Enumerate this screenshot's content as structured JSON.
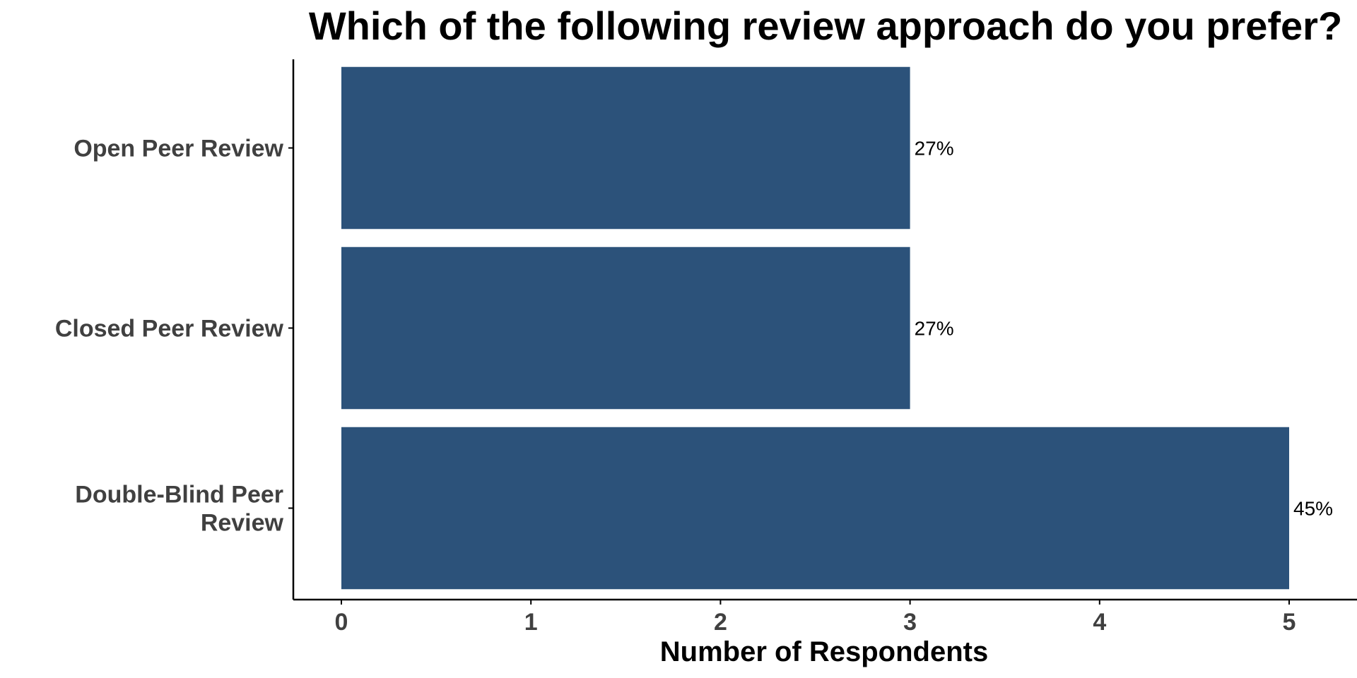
{
  "chart_data": {
    "type": "bar",
    "orientation": "horizontal",
    "title": "Which of the following review approach do you prefer?",
    "xlabel": "Number of Respondents",
    "ylabel": "",
    "categories": [
      [
        "Open Peer Review"
      ],
      [
        "Closed Peer Review"
      ],
      [
        "Double-Blind Peer",
        "Review"
      ]
    ],
    "values": [
      3,
      3,
      5
    ],
    "data_labels": [
      "27%",
      "27%",
      "45%"
    ],
    "xlim": [
      0,
      5
    ],
    "xticks": [
      0,
      1,
      2,
      3,
      4,
      5
    ],
    "grid": false,
    "legend": "none",
    "bar_color": "#2c527a"
  }
}
